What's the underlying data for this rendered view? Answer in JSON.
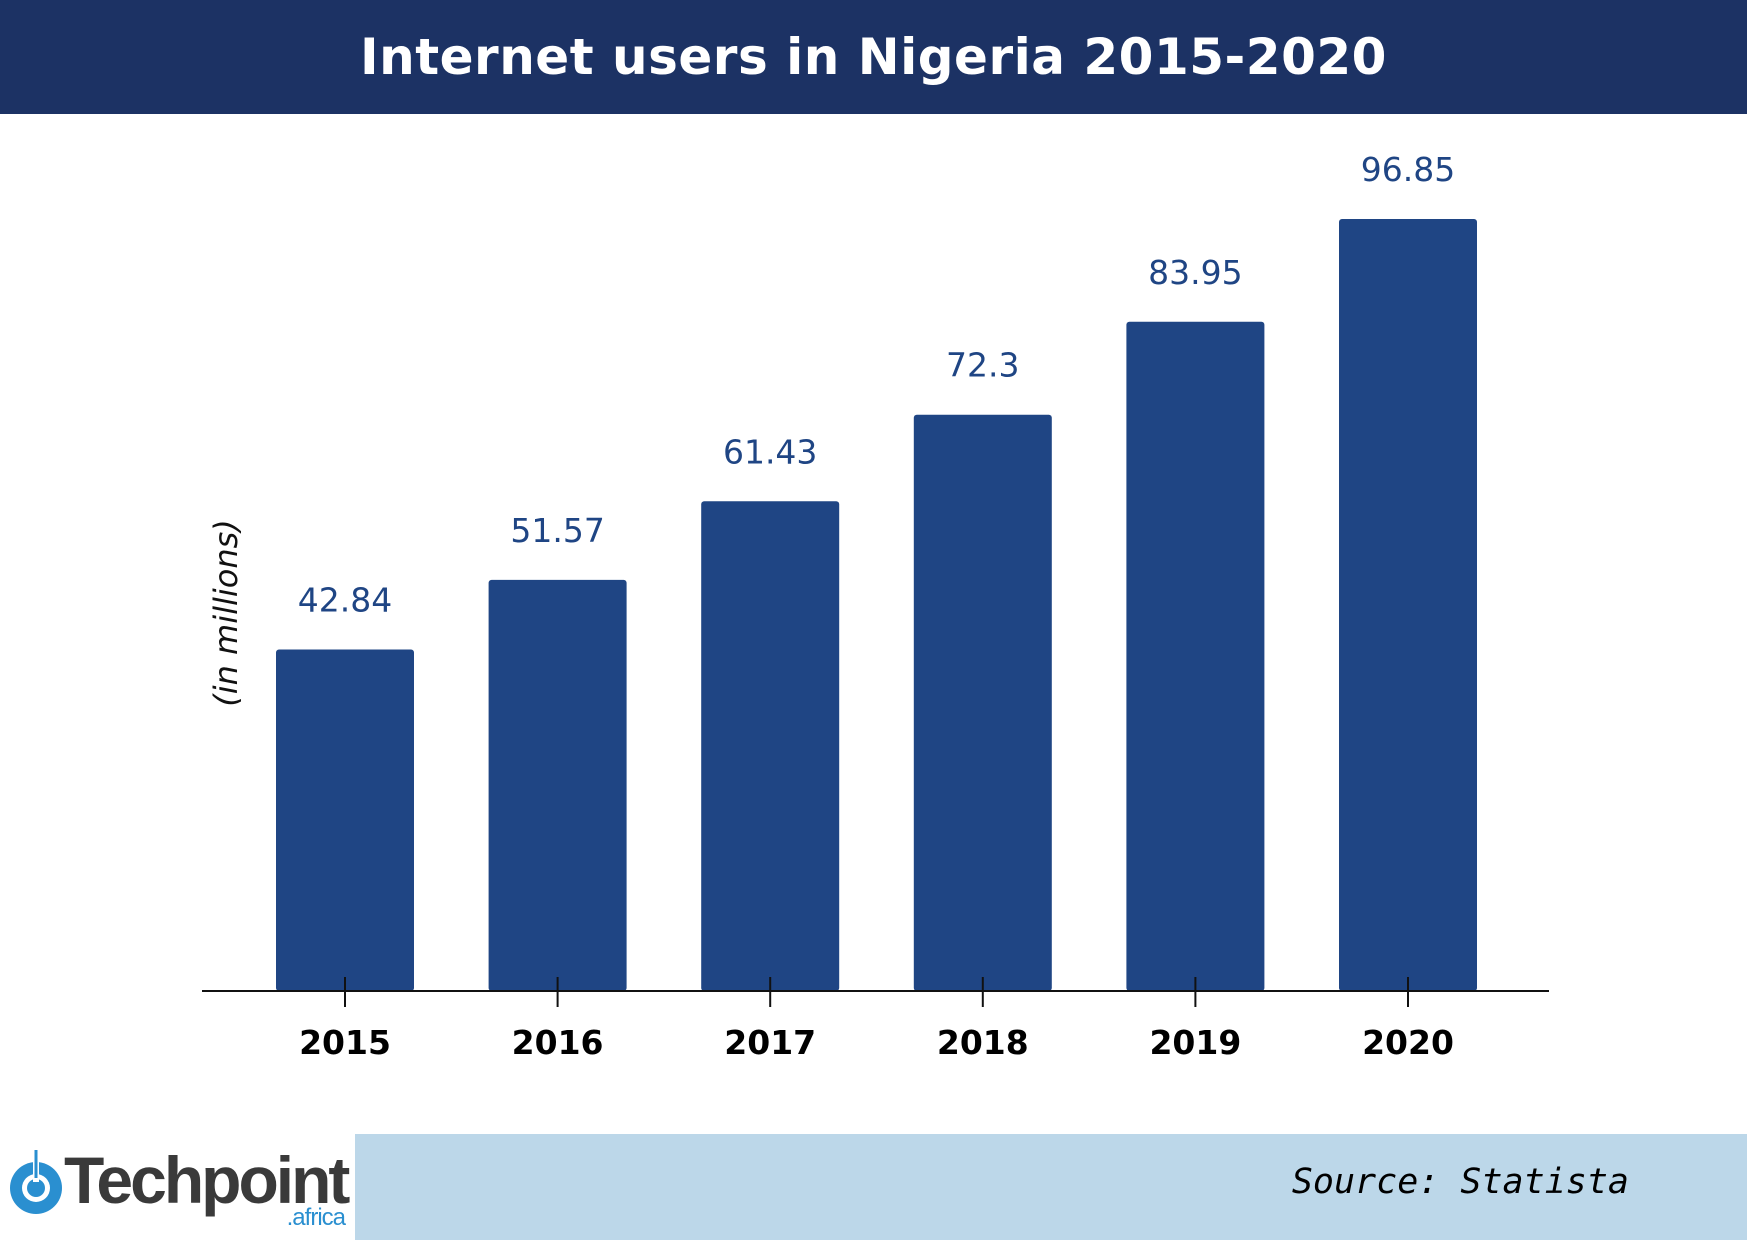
{
  "title": "Internet users in Nigeria 2015-2020",
  "colors": {
    "header_bg": "#1c3264",
    "bar": "#1f4584",
    "value_label": "#1f4584",
    "footer_bg": "#bcd7e9",
    "logo_accent": "#2a8fd0"
  },
  "chart_data": {
    "type": "bar",
    "title": "Internet users in Nigeria 2015-2020",
    "xlabel": "",
    "ylabel": "(in millions)",
    "categories": [
      "2015",
      "2016",
      "2017",
      "2018",
      "2019",
      "2020"
    ],
    "values": [
      42.84,
      51.57,
      61.43,
      72.3,
      83.95,
      96.85
    ],
    "value_labels": [
      "42.84",
      "51.57",
      "61.43",
      "72.3",
      "83.95",
      "96.85"
    ],
    "ylim": [
      0,
      96.85
    ],
    "grid": false,
    "legend": "none"
  },
  "footer": {
    "logo": {
      "name": "Techpoint",
      "sub": ".africa",
      "icon": "techpoint-logo-icon"
    },
    "source": "Source: Statista"
  }
}
